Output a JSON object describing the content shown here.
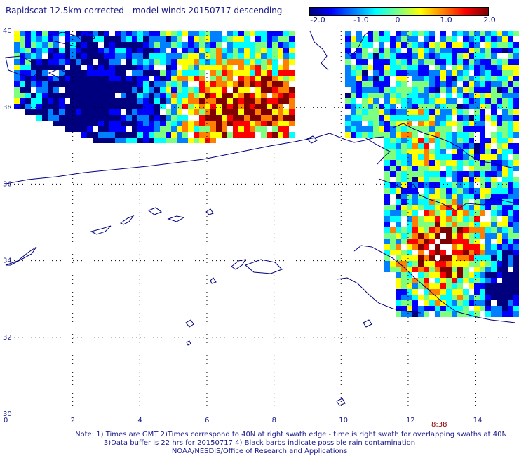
{
  "title": "Rapidscat 12.5km corrected - model winds 20150717 descending",
  "colorbar": {
    "ticks": [
      "-2.0",
      "-1.0",
      "0",
      "1.0",
      "2.0"
    ],
    "colors": [
      "#00007f",
      "#0000ff",
      "#0080ff",
      "#00ffff",
      "#7fff7f",
      "#ffff00",
      "#ff8000",
      "#ff0000",
      "#7f0000"
    ]
  },
  "axes": {
    "y_labels": [
      "40",
      "38",
      "36",
      "34",
      "32",
      "30"
    ],
    "x_labels": [
      "0",
      "2",
      "4",
      "6",
      "8",
      "10",
      "12",
      "14"
    ]
  },
  "swath_time": "8:38",
  "notes": {
    "line1": "Note: 1) Times are GMT 2)Times correspond to 40N at right swath edge - time is right swath for overlapping swaths at 40N",
    "line2": "3)Data buffer is 22 hrs for 20150717 4) Black barbs indicate possible rain contamination",
    "line3": "NOAA/NESDIS/Office of Research and Applications"
  },
  "colors": {
    "coast": "#000080",
    "grid": "#000000",
    "text": "#1a1a8a"
  }
}
